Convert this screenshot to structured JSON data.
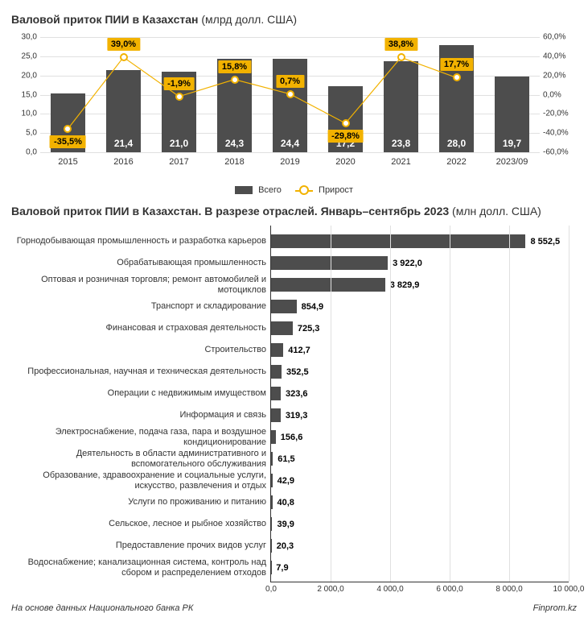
{
  "colors": {
    "bar": "#4d4d4d",
    "accent": "#f2b200",
    "grid": "#e0e0e0",
    "bg": "#ffffff",
    "text": "#333333"
  },
  "chart1": {
    "type": "bar+line",
    "title_bold": "Валовой приток ПИИ в Казахстан",
    "title_unit": "(млрд долл. США)",
    "categories": [
      "2015",
      "2016",
      "2017",
      "2018",
      "2019",
      "2020",
      "2021",
      "2022",
      "2023/09"
    ],
    "bar_values": [
      15.4,
      21.4,
      21.0,
      24.3,
      24.4,
      17.2,
      23.8,
      28.0,
      19.7
    ],
    "bar_labels": [
      "15,4",
      "21,4",
      "21,0",
      "24,3",
      "24,4",
      "17,2",
      "23,8",
      "28,0",
      "19,7"
    ],
    "growth_values": [
      -35.5,
      39.0,
      -1.9,
      15.8,
      0.7,
      -29.8,
      38.8,
      17.7
    ],
    "growth_labels": [
      "-35,5%",
      "39,0%",
      "-1,9%",
      "15,8%",
      "0,7%",
      "-29,8%",
      "38,8%",
      "17,7%"
    ],
    "left_axis": {
      "min": 0,
      "max": 30,
      "step": 5,
      "labels": [
        "0,0",
        "5,0",
        "10,0",
        "15,0",
        "20,0",
        "25,0",
        "30,0"
      ]
    },
    "right_axis": {
      "min": -60,
      "max": 60,
      "step": 20,
      "labels": [
        "-60,0%",
        "-40,0%",
        "-20,0%",
        "0,0%",
        "20,0%",
        "40,0%",
        "60,0%"
      ]
    },
    "legend": {
      "series1": "Всего",
      "series2": "Прирост"
    },
    "bar_width_rel": 0.62,
    "badge_pos": [
      "below",
      "above",
      "above",
      "above",
      "above",
      "below",
      "above",
      "above"
    ]
  },
  "chart2": {
    "type": "hbar",
    "title_bold": "Валовой приток ПИИ в Казахстан. В разрезе отраслей. Январь–сентябрь 2023",
    "title_unit": "(млн долл. США)",
    "x_axis": {
      "min": 0,
      "max": 10000,
      "step": 2000,
      "labels": [
        "0,0",
        "2 000,0",
        "4 000,0",
        "6 000,0",
        "8 000,0",
        "10 000,0"
      ]
    },
    "rows": [
      {
        "label": "Горнодобывающая промышленность и разработка карьеров",
        "value": 8552.5,
        "value_label": "8 552,5"
      },
      {
        "label": "Обрабатывающая промышленность",
        "value": 3922.0,
        "value_label": "3 922,0"
      },
      {
        "label": "Оптовая и розничная торговля; ремонт автомобилей и мотоциклов",
        "value": 3829.9,
        "value_label": "3 829,9"
      },
      {
        "label": "Транспорт и складирование",
        "value": 854.9,
        "value_label": "854,9"
      },
      {
        "label": "Финансовая и страховая деятельность",
        "value": 725.3,
        "value_label": "725,3"
      },
      {
        "label": "Строительство",
        "value": 412.7,
        "value_label": "412,7"
      },
      {
        "label": "Профессиональная, научная и техническая деятельность",
        "value": 352.5,
        "value_label": "352,5"
      },
      {
        "label": "Операции с недвижимым имуществом",
        "value": 323.6,
        "value_label": "323,6"
      },
      {
        "label": "Информация и связь",
        "value": 319.3,
        "value_label": "319,3"
      },
      {
        "label": "Электроснабжение, подача газа, пара и воздушное кондиционирование",
        "value": 156.6,
        "value_label": "156,6"
      },
      {
        "label": "Деятельность в области административного и вспомогательного обслуживания",
        "value": 61.5,
        "value_label": "61,5"
      },
      {
        "label": "Образование, здравоохранение и социальные услуги, искусство, развлечения и отдых",
        "value": 42.9,
        "value_label": "42,9"
      },
      {
        "label": "Услуги по проживанию и питанию",
        "value": 40.8,
        "value_label": "40,8"
      },
      {
        "label": "Сельское, лесное и рыбное хозяйство",
        "value": 39.9,
        "value_label": "39,9"
      },
      {
        "label": "Предоставление прочих видов услуг",
        "value": 20.3,
        "value_label": "20,3"
      },
      {
        "label": "Водоснабжение; канализационная система, контроль над сбором и распределением отходов",
        "value": 7.9,
        "value_label": "7,9"
      }
    ]
  },
  "footer": {
    "source": "На основе данных Национального банка РК",
    "brand": "Finprom.kz"
  }
}
